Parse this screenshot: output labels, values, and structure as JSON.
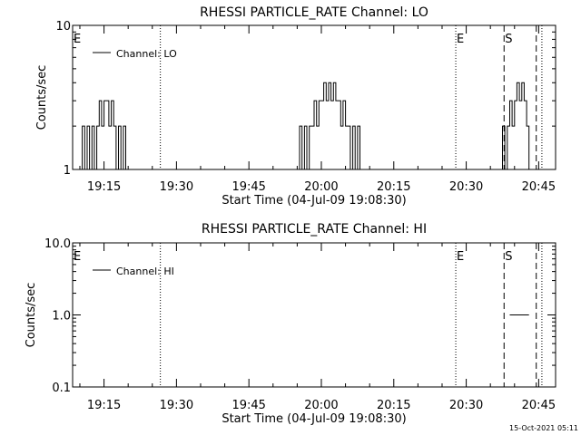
{
  "colors": {
    "foreground": "#000000",
    "background": "#ffffff"
  },
  "footer": {
    "timestamp": "15-Oct-2021 05:11"
  },
  "chart_data": [
    {
      "type": "line",
      "title": "RHESSI PARTICLE_RATE Channel: LO",
      "xlabel": "Start Time (04-Jul-09 19:08:30)",
      "ylabel": "Counts/sec",
      "y_scale": "log",
      "ylim": [
        1,
        10
      ],
      "ytick_labels": [
        {
          "value": 1,
          "label": "1"
        },
        {
          "value": 10,
          "label": "10"
        }
      ],
      "xlim": [
        "19:08:30",
        "20:48:30"
      ],
      "xtick_labels": [
        {
          "time": "19:15",
          "label": "19:15"
        },
        {
          "time": "19:30",
          "label": "19:30"
        },
        {
          "time": "19:45",
          "label": "19:45"
        },
        {
          "time": "20:00",
          "label": "20:00"
        },
        {
          "time": "20:15",
          "label": "20:15"
        },
        {
          "time": "20:30",
          "label": "20:30"
        },
        {
          "time": "20:45",
          "label": "20:45"
        }
      ],
      "legend": {
        "label": "Channel: LO",
        "placement": "top-left"
      },
      "markers": [
        {
          "label": "E",
          "time": "19:08:30",
          "line": "none"
        },
        {
          "label": "",
          "time": "19:26:40",
          "line": "dotted"
        },
        {
          "label": "E",
          "time": "20:27:50",
          "line": "dotted"
        },
        {
          "label": "S",
          "time": "20:37:50",
          "line": "dashed"
        },
        {
          "label": "",
          "time": "20:44:30",
          "line": "dashed"
        },
        {
          "label": "",
          "time": "20:45:40",
          "line": "dotted"
        }
      ],
      "series": [
        {
          "bursts": [
            {
              "x": [
                "19:10:00",
                "19:10:30",
                "19:11:00",
                "19:11:30",
                "19:12:00",
                "19:12:30",
                "19:13:00",
                "19:13:30",
                "19:14:00",
                "19:14:30",
                "19:15:00",
                "19:15:30",
                "19:16:00",
                "19:16:30",
                "19:17:00",
                "19:17:30",
                "19:18:00",
                "19:18:30",
                "19:19:00",
                "19:19:30",
                "19:20:00"
              ],
              "y": [
                1,
                2,
                1,
                2,
                1,
                2,
                1,
                2,
                3,
                2,
                3,
                3,
                2,
                3,
                2,
                1,
                2,
                1,
                2,
                1,
                1
              ]
            },
            {
              "x": [
                "19:55:00",
                "19:55:30",
                "19:56:00",
                "19:56:30",
                "19:57:00",
                "19:57:30",
                "19:58:00",
                "19:58:30",
                "19:59:00",
                "19:59:30",
                "20:00:00",
                "20:00:30",
                "20:01:00",
                "20:01:30",
                "20:02:00",
                "20:02:30",
                "20:03:00",
                "20:03:30",
                "20:04:00",
                "20:04:30",
                "20:05:00",
                "20:05:30",
                "20:06:00",
                "20:06:30",
                "20:07:00",
                "20:07:30",
                "20:08:00"
              ],
              "y": [
                1,
                2,
                1,
                2,
                1,
                2,
                2,
                3,
                2,
                3,
                3,
                4,
                3,
                4,
                3,
                4,
                3,
                3,
                2,
                3,
                2,
                2,
                1,
                2,
                1,
                2,
                1
              ]
            },
            {
              "x": [
                "20:37:00",
                "20:37:30",
                "20:38:00",
                "20:38:30",
                "20:39:00",
                "20:39:30",
                "20:40:00",
                "20:40:30",
                "20:41:00",
                "20:41:30",
                "20:42:00",
                "20:42:30",
                "20:43:00"
              ],
              "y": [
                1,
                2,
                1,
                2,
                3,
                2,
                3,
                4,
                3,
                4,
                3,
                2,
                1
              ]
            }
          ]
        }
      ]
    },
    {
      "type": "line",
      "title": "RHESSI PARTICLE_RATE Channel: HI",
      "xlabel": "Start Time (04-Jul-09 19:08:30)",
      "ylabel": "Counts/sec",
      "y_scale": "log",
      "ylim": [
        0.1,
        10
      ],
      "ytick_labels": [
        {
          "value": 0.1,
          "label": "0.1"
        },
        {
          "value": 1,
          "label": "1.0"
        },
        {
          "value": 10,
          "label": "10.0"
        }
      ],
      "xlim": [
        "19:08:30",
        "20:48:30"
      ],
      "xtick_labels": [
        {
          "time": "19:15",
          "label": "19:15"
        },
        {
          "time": "19:30",
          "label": "19:30"
        },
        {
          "time": "19:45",
          "label": "19:45"
        },
        {
          "time": "20:00",
          "label": "20:00"
        },
        {
          "time": "20:15",
          "label": "20:15"
        },
        {
          "time": "20:30",
          "label": "20:30"
        },
        {
          "time": "20:45",
          "label": "20:45"
        }
      ],
      "legend": {
        "label": "Channel: HI",
        "placement": "top-left"
      },
      "markers": [
        {
          "label": "E",
          "time": "19:08:30",
          "line": "none"
        },
        {
          "label": "",
          "time": "19:26:40",
          "line": "dotted"
        },
        {
          "label": "E",
          "time": "20:27:50",
          "line": "dotted"
        },
        {
          "label": "S",
          "time": "20:37:50",
          "line": "dashed"
        },
        {
          "label": "",
          "time": "20:44:30",
          "line": "dashed"
        },
        {
          "label": "",
          "time": "20:45:40",
          "line": "dotted"
        }
      ],
      "series": [
        {
          "bursts": [
            {
              "x": [
                "20:39:00",
                "20:41:00"
              ],
              "y": [
                1,
                1
              ]
            },
            {
              "x": [
                "20:47:20",
                "20:48:30"
              ],
              "y": [
                1,
                1
              ]
            }
          ]
        }
      ]
    }
  ]
}
